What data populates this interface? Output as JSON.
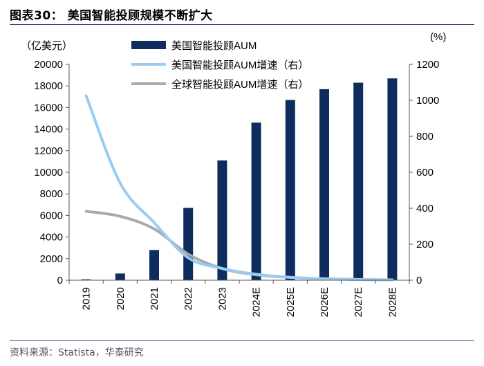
{
  "figure": {
    "title": "图表30：  美国智能投顾规模不断扩大",
    "source": "资料来源：Statista，华泰研究"
  },
  "chart_data": {
    "type": "bar",
    "categories": [
      "2019",
      "2020",
      "2021",
      "2022",
      "2023",
      "2024E",
      "2025E",
      "2026E",
      "2027E",
      "2028E"
    ],
    "left_axis": {
      "unit_label": "（亿美元）",
      "range": [
        0,
        20000
      ],
      "ticks": [
        0,
        2000,
        4000,
        6000,
        8000,
        10000,
        12000,
        14000,
        16000,
        18000,
        20000
      ]
    },
    "right_axis": {
      "unit_label": "(%)",
      "range": [
        0,
        1200
      ],
      "ticks": [
        0,
        200,
        400,
        600,
        800,
        1000,
        1200
      ]
    },
    "series": [
      {
        "name": "美国智能投顾AUM",
        "type": "bar",
        "axis": "left",
        "color": "#0e2d5e",
        "values": [
          80,
          620,
          2800,
          6700,
          11100,
          14600,
          16700,
          17700,
          18300,
          18700
        ]
      },
      {
        "name": "美国智能投顾AUM增速（右）",
        "type": "line",
        "axis": "right",
        "color": "#99ccf3",
        "values": [
          1025,
          540,
          320,
          125,
          65,
          33,
          16,
          8,
          4,
          2
        ]
      },
      {
        "name": "全球智能投顾AUM增速（右）",
        "type": "line",
        "axis": "right",
        "color": "#a9a9a9",
        "values": [
          383,
          355,
          285,
          145,
          65,
          30,
          16,
          8,
          4,
          2
        ]
      }
    ],
    "legend_position": "top",
    "grid": false
  }
}
